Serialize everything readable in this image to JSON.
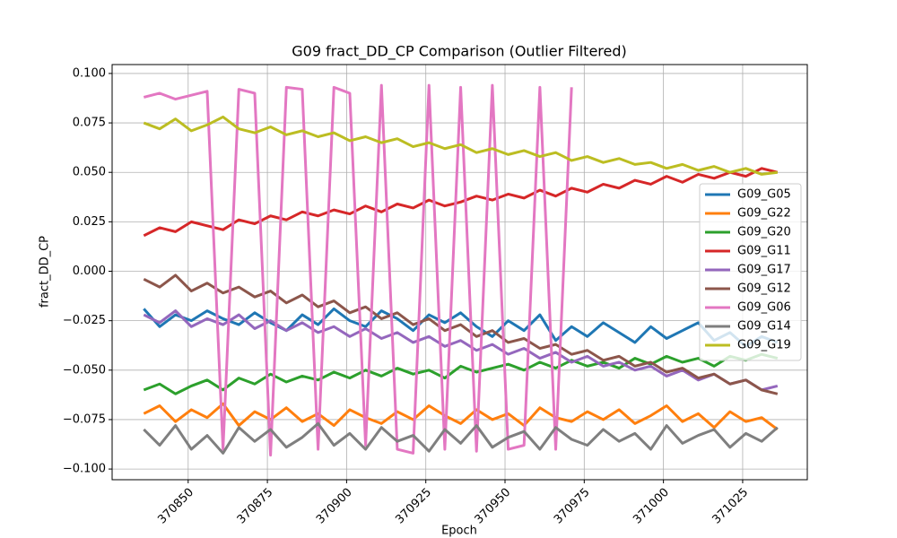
{
  "chart_data": {
    "type": "line",
    "title": "G09 fract_DD_CP Comparison (Outlier Filtered)",
    "xlabel": "Epoch",
    "ylabel": "fract_DD_CP",
    "x": [
      370836,
      370841,
      370846,
      370851,
      370856,
      370861,
      370866,
      370871,
      370876,
      370881,
      370886,
      370891,
      370896,
      370901,
      370906,
      370911,
      370916,
      370921,
      370926,
      370931,
      370936,
      370941,
      370946,
      370951,
      370956,
      370961,
      370966,
      370971,
      370976,
      370981,
      370986,
      370991,
      370996,
      371001,
      371006,
      371011,
      371016,
      371021,
      371026,
      371031,
      371036
    ],
    "xlim": [
      370826,
      371045.4
    ],
    "xticks": [
      370850,
      370875,
      370900,
      370925,
      370950,
      370975,
      371000,
      371025
    ],
    "ylim": [
      -0.1054,
      0.1045
    ],
    "yticks": [
      {
        "value": -0.1,
        "label": "−0.100"
      },
      {
        "value": -0.075,
        "label": "−0.075"
      },
      {
        "value": -0.05,
        "label": "−0.050"
      },
      {
        "value": -0.025,
        "label": "−0.025"
      },
      {
        "value": 0,
        "label": "0.000"
      },
      {
        "value": 0.025,
        "label": "0.025"
      },
      {
        "value": 0.05,
        "label": "0.050"
      },
      {
        "value": 0.075,
        "label": "0.075"
      },
      {
        "value": 0.1,
        "label": "0.100"
      }
    ],
    "grid": true,
    "legend": "center right",
    "series": [
      {
        "name": "G09_G05",
        "color": "#1f77b4",
        "values": [
          -0.019,
          -0.028,
          -0.022,
          -0.025,
          -0.02,
          -0.024,
          -0.027,
          -0.021,
          -0.026,
          -0.03,
          -0.022,
          -0.027,
          -0.019,
          -0.025,
          -0.028,
          -0.02,
          -0.024,
          -0.03,
          -0.022,
          -0.026,
          -0.021,
          -0.028,
          -0.033,
          -0.025,
          -0.03,
          -0.022,
          -0.035,
          -0.028,
          -0.033,
          -0.026,
          -0.031,
          -0.036,
          -0.028,
          -0.034,
          -0.03,
          -0.026,
          -0.035,
          -0.031,
          -0.038,
          -0.033,
          -0.036
        ]
      },
      {
        "name": "G09_G22",
        "color": "#ff7f0e",
        "values": [
          -0.072,
          -0.068,
          -0.076,
          -0.07,
          -0.074,
          -0.067,
          -0.078,
          -0.071,
          -0.075,
          -0.069,
          -0.076,
          -0.072,
          -0.078,
          -0.07,
          -0.074,
          -0.077,
          -0.071,
          -0.075,
          -0.068,
          -0.073,
          -0.077,
          -0.07,
          -0.075,
          -0.072,
          -0.078,
          -0.069,
          -0.074,
          -0.076,
          -0.071,
          -0.075,
          -0.07,
          -0.077,
          -0.073,
          -0.068,
          -0.076,
          -0.072,
          -0.079,
          -0.071,
          -0.076,
          -0.074,
          -0.08
        ]
      },
      {
        "name": "G09_G20",
        "color": "#2ca02c",
        "values": [
          -0.06,
          -0.057,
          -0.062,
          -0.058,
          -0.055,
          -0.06,
          -0.054,
          -0.057,
          -0.052,
          -0.056,
          -0.053,
          -0.055,
          -0.051,
          -0.054,
          -0.05,
          -0.053,
          -0.049,
          -0.052,
          -0.05,
          -0.054,
          -0.048,
          -0.051,
          -0.049,
          -0.047,
          -0.05,
          -0.046,
          -0.049,
          -0.045,
          -0.048,
          -0.046,
          -0.049,
          -0.044,
          -0.047,
          -0.043,
          -0.046,
          -0.044,
          -0.048,
          -0.043,
          -0.045,
          -0.042,
          -0.044
        ]
      },
      {
        "name": "G09_G11",
        "color": "#d62728",
        "values": [
          0.018,
          0.022,
          0.02,
          0.025,
          0.023,
          0.021,
          0.026,
          0.024,
          0.028,
          0.026,
          0.03,
          0.028,
          0.031,
          0.029,
          0.033,
          0.03,
          0.034,
          0.032,
          0.036,
          0.033,
          0.035,
          0.038,
          0.036,
          0.039,
          0.037,
          0.041,
          0.038,
          0.042,
          0.04,
          0.044,
          0.042,
          0.046,
          0.044,
          0.048,
          0.045,
          0.049,
          0.047,
          0.05,
          0.048,
          0.052,
          0.05
        ]
      },
      {
        "name": "G09_G17",
        "color": "#9467bd",
        "values": [
          -0.022,
          -0.026,
          -0.02,
          -0.028,
          -0.024,
          -0.027,
          -0.022,
          -0.029,
          -0.025,
          -0.03,
          -0.026,
          -0.031,
          -0.028,
          -0.033,
          -0.029,
          -0.034,
          -0.031,
          -0.036,
          -0.033,
          -0.038,
          -0.035,
          -0.04,
          -0.037,
          -0.042,
          -0.039,
          -0.044,
          -0.041,
          -0.046,
          -0.043,
          -0.048,
          -0.046,
          -0.05,
          -0.048,
          -0.053,
          -0.05,
          -0.055,
          -0.052,
          -0.057,
          -0.055,
          -0.06,
          -0.058
        ]
      },
      {
        "name": "G09_G12",
        "color": "#8c564b",
        "values": [
          -0.004,
          -0.008,
          -0.002,
          -0.01,
          -0.006,
          -0.011,
          -0.008,
          -0.013,
          -0.01,
          -0.016,
          -0.012,
          -0.018,
          -0.015,
          -0.021,
          -0.018,
          -0.024,
          -0.021,
          -0.027,
          -0.024,
          -0.03,
          -0.027,
          -0.033,
          -0.03,
          -0.036,
          -0.034,
          -0.039,
          -0.037,
          -0.042,
          -0.04,
          -0.045,
          -0.043,
          -0.048,
          -0.046,
          -0.051,
          -0.049,
          -0.054,
          -0.052,
          -0.057,
          -0.055,
          -0.06,
          -0.062
        ]
      },
      {
        "name": "G09_G06",
        "color": "#e377c2",
        "values": [
          0.088,
          0.09,
          0.087,
          0.089,
          0.091,
          -0.09,
          0.092,
          0.09,
          -0.093,
          0.093,
          0.092,
          -0.09,
          0.093,
          0.09,
          -0.088,
          0.094,
          -0.09,
          -0.092,
          0.094,
          -0.09,
          0.093,
          -0.091,
          0.094,
          -0.09,
          -0.088,
          0.093,
          -0.09,
          0.093,
          null,
          null,
          null,
          null,
          null,
          null,
          null,
          null,
          null,
          null,
          null,
          null,
          null
        ]
      },
      {
        "name": "G09_G14",
        "color": "#7f7f7f",
        "values": [
          -0.08,
          -0.088,
          -0.078,
          -0.09,
          -0.083,
          -0.092,
          -0.079,
          -0.086,
          -0.08,
          -0.089,
          -0.084,
          -0.077,
          -0.088,
          -0.082,
          -0.09,
          -0.079,
          -0.086,
          -0.083,
          -0.091,
          -0.08,
          -0.087,
          -0.078,
          -0.089,
          -0.084,
          -0.081,
          -0.09,
          -0.079,
          -0.085,
          -0.088,
          -0.08,
          -0.086,
          -0.082,
          -0.09,
          -0.078,
          -0.087,
          -0.083,
          -0.08,
          -0.089,
          -0.082,
          -0.086,
          -0.079
        ]
      },
      {
        "name": "G09_G19",
        "color": "#bcbd22",
        "values": [
          0.075,
          0.072,
          0.077,
          0.071,
          0.074,
          0.078,
          0.072,
          0.07,
          0.073,
          0.069,
          0.071,
          0.068,
          0.07,
          0.066,
          0.068,
          0.065,
          0.067,
          0.063,
          0.065,
          0.062,
          0.064,
          0.06,
          0.062,
          0.059,
          0.061,
          0.058,
          0.06,
          0.056,
          0.058,
          0.055,
          0.057,
          0.054,
          0.055,
          0.052,
          0.054,
          0.051,
          0.053,
          0.05,
          0.052,
          0.049,
          0.05
        ]
      }
    ]
  }
}
